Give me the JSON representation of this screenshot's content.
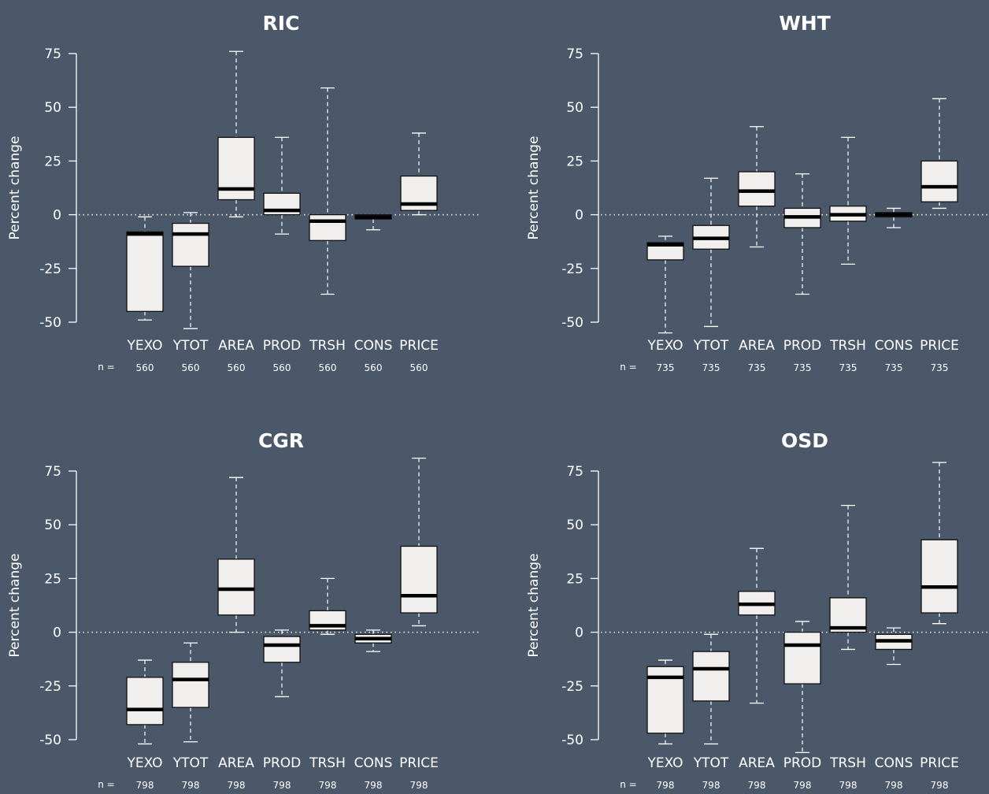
{
  "colors": {
    "background": "#4a586a",
    "box_fill": "#f1efed",
    "box_stroke": "#111111",
    "median": "#000000",
    "whisker": "#ffffff",
    "axis": "#ffffff",
    "text": "#ffffff"
  },
  "chart_data": [
    {
      "type": "boxplot",
      "title": "RIC",
      "ylabel": "Percent change",
      "ylim": [
        -50,
        75
      ],
      "yticks": [
        75,
        50,
        25,
        0,
        -25,
        -50
      ],
      "reference_line": 0,
      "n_label": "n =",
      "categories": [
        "YEXO",
        "YTOT",
        "AREA",
        "PROD",
        "TRSH",
        "CONS",
        "PRICE"
      ],
      "n": [
        "560",
        "560",
        "560",
        "560",
        "560",
        "560",
        "560"
      ],
      "boxes": [
        {
          "min": -49,
          "q1": -45,
          "median": -9,
          "q3": -8,
          "max": -1
        },
        {
          "min": -53,
          "q1": -24,
          "median": -9,
          "q3": -4,
          "max": 1
        },
        {
          "min": -1,
          "q1": 7,
          "median": 12,
          "q3": 36,
          "max": 76
        },
        {
          "min": -9,
          "q1": 0,
          "median": 2,
          "q3": 10,
          "max": 36
        },
        {
          "min": -37,
          "q1": -12,
          "median": -3,
          "q3": 0,
          "max": 59
        },
        {
          "min": -7,
          "q1": -2,
          "median": -1,
          "q3": 0,
          "max": 0
        },
        {
          "min": 0,
          "q1": 2,
          "median": 5,
          "q3": 18,
          "max": 38
        }
      ]
    },
    {
      "type": "boxplot",
      "title": "WHT",
      "ylabel": "Percent change",
      "ylim": [
        -50,
        75
      ],
      "yticks": [
        75,
        50,
        25,
        0,
        -25,
        -50
      ],
      "reference_line": 0,
      "n_label": "n =",
      "categories": [
        "YEXO",
        "YTOT",
        "AREA",
        "PROD",
        "TRSH",
        "CONS",
        "PRICE"
      ],
      "n": [
        "735",
        "735",
        "735",
        "735",
        "735",
        "735",
        "735"
      ],
      "boxes": [
        {
          "min": -55,
          "q1": -21,
          "median": -14,
          "q3": -13,
          "max": -10
        },
        {
          "min": -52,
          "q1": -16,
          "median": -11,
          "q3": -5,
          "max": 17
        },
        {
          "min": -15,
          "q1": 4,
          "median": 11,
          "q3": 20,
          "max": 41
        },
        {
          "min": -37,
          "q1": -6,
          "median": -1,
          "q3": 3,
          "max": 19
        },
        {
          "min": -23,
          "q1": -3,
          "median": 0,
          "q3": 4,
          "max": 36
        },
        {
          "min": -6,
          "q1": -1,
          "median": 0,
          "q3": 1,
          "max": 3
        },
        {
          "min": 3,
          "q1": 6,
          "median": 13,
          "q3": 25,
          "max": 54
        }
      ]
    },
    {
      "type": "boxplot",
      "title": "CGR",
      "ylabel": "Percent change",
      "ylim": [
        -50,
        75
      ],
      "yticks": [
        75,
        50,
        25,
        0,
        -25,
        -50
      ],
      "reference_line": 0,
      "n_label": "n =",
      "categories": [
        "YEXO",
        "YTOT",
        "AREA",
        "PROD",
        "TRSH",
        "CONS",
        "PRICE"
      ],
      "n": [
        "798",
        "798",
        "798",
        "798",
        "798",
        "798",
        "798"
      ],
      "boxes": [
        {
          "min": -52,
          "q1": -43,
          "median": -36,
          "q3": -21,
          "max": -13
        },
        {
          "min": -51,
          "q1": -35,
          "median": -22,
          "q3": -14,
          "max": -5
        },
        {
          "min": 0,
          "q1": 8,
          "median": 20,
          "q3": 34,
          "max": 72
        },
        {
          "min": -30,
          "q1": -14,
          "median": -6,
          "q3": -2,
          "max": 1
        },
        {
          "min": -1,
          "q1": 1,
          "median": 3,
          "q3": 10,
          "max": 25
        },
        {
          "min": -9,
          "q1": -5,
          "median": -3,
          "q3": -1,
          "max": 1
        },
        {
          "min": 3,
          "q1": 9,
          "median": 17,
          "q3": 40,
          "max": 81
        }
      ]
    },
    {
      "type": "boxplot",
      "title": "OSD",
      "ylabel": "Percent change",
      "ylim": [
        -50,
        75
      ],
      "yticks": [
        75,
        50,
        25,
        0,
        -25,
        -50
      ],
      "reference_line": 0,
      "n_label": "n =",
      "categories": [
        "YEXO",
        "YTOT",
        "AREA",
        "PROD",
        "TRSH",
        "CONS",
        "PRICE"
      ],
      "n": [
        "798",
        "798",
        "798",
        "798",
        "798",
        "798",
        "798"
      ],
      "boxes": [
        {
          "min": -52,
          "q1": -47,
          "median": -21,
          "q3": -16,
          "max": -13
        },
        {
          "min": -52,
          "q1": -32,
          "median": -17,
          "q3": -9,
          "max": -1
        },
        {
          "min": -33,
          "q1": 8,
          "median": 13,
          "q3": 19,
          "max": 39
        },
        {
          "min": -56,
          "q1": -24,
          "median": -6,
          "q3": 0,
          "max": 5
        },
        {
          "min": -8,
          "q1": 0,
          "median": 2,
          "q3": 16,
          "max": 59
        },
        {
          "min": -15,
          "q1": -8,
          "median": -4,
          "q3": -1,
          "max": 2
        },
        {
          "min": 4,
          "q1": 9,
          "median": 21,
          "q3": 43,
          "max": 79
        }
      ]
    }
  ]
}
